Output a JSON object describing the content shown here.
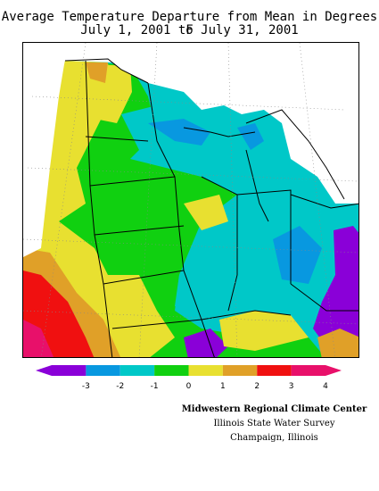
{
  "title": {
    "line1": "Average Temperature Departure from Mean in Degrees F",
    "line2": "July 1, 2001 to July 31, 2001"
  },
  "colors": {
    "c_n3": "#8a00d8",
    "c_n2": "#0898e0",
    "c_n1": "#00c8c8",
    "c_0": "#10d010",
    "c_1": "#e8e030",
    "c_2": "#e0a028",
    "c_3": "#f01010",
    "c_4": "#e8106a"
  },
  "legend": {
    "ticks": [
      "-3",
      "-2",
      "-1",
      "0",
      "1",
      "2",
      "3",
      "4"
    ],
    "bins": [
      "c_n3",
      "c_n2",
      "c_n1",
      "c_0",
      "c_1",
      "c_2",
      "c_3",
      "c_4"
    ]
  },
  "credits": {
    "line1": "Midwestern Regional Climate Center",
    "line2": "Illinois State Water Survey",
    "line3": "Champaign, Illinois"
  }
}
